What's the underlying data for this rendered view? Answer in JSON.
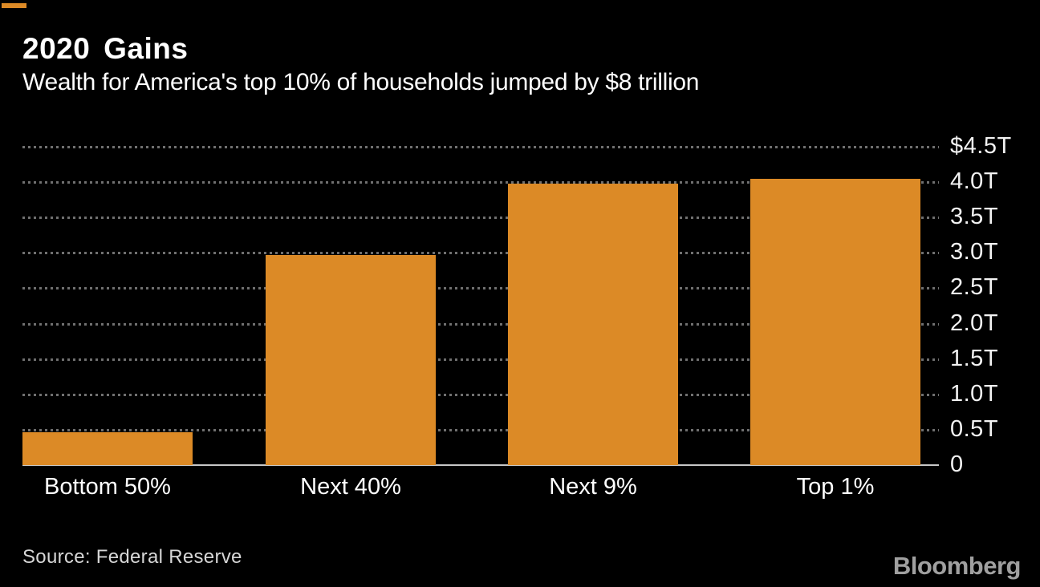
{
  "header": {
    "title": "2020 Gains",
    "subtitle": "Wealth for America's top 10% of households jumped by $8 trillion",
    "series_key_color": "#DC8A26"
  },
  "chart_data": {
    "type": "bar",
    "title": "2020 Gains",
    "subtitle": "Wealth for America's top 10% of households jumped by $8 trillion",
    "categories": [
      "Bottom 50%",
      "Next 40%",
      "Next 9%",
      "Top 1%"
    ],
    "values": [
      0.47,
      2.97,
      3.98,
      4.05
    ],
    "unit": "USD trillions",
    "xlabel": "",
    "ylabel": "",
    "ylim": [
      0,
      4.5
    ],
    "yticks": [
      0,
      0.5,
      1.0,
      1.5,
      2.0,
      2.5,
      3.0,
      3.5,
      4.0,
      4.5
    ],
    "ytick_labels": [
      "0",
      "0.5T",
      "1.0T",
      "1.5T",
      "2.0T",
      "2.5T",
      "3.0T",
      "3.5T",
      "4.0T",
      "$4.5T"
    ],
    "yaxis_side": "right",
    "grid": "horizontal-dotted",
    "legend_position": "none",
    "bar_color": "#DC8A26",
    "background_color": "#000000"
  },
  "footer": {
    "source": "Source: Federal Reserve",
    "brand": "Bloomberg"
  },
  "colors": {
    "background": "#000000",
    "bar": "#DC8A26",
    "grid_dots": "#707070",
    "baseline": "#C8C8C8",
    "text_primary": "#FFFFFF",
    "text_axis": "#F2F2F2",
    "text_source": "#D6D6D6",
    "brand_gray": "#A0A0A0"
  }
}
